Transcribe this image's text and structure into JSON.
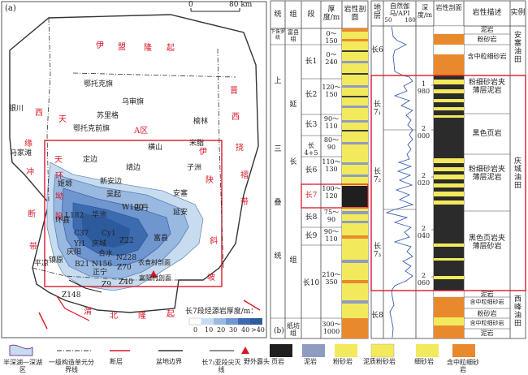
{
  "map": {
    "panel_label": "(a)",
    "scale": {
      "zero": "0",
      "dist": "80 km"
    },
    "region_labels": {
      "yimeng": [
        "伊",
        "盟",
        "隆",
        "起"
      ],
      "west": [
        "西",
        "天",
        "缘"
      ],
      "jinxi": [
        "晋",
        "西",
        "挠",
        "褶",
        "带"
      ],
      "weibei": [
        "渭",
        "北",
        "隆",
        "起"
      ],
      "yishan": [
        "伊",
        "陕",
        "斜",
        "坡"
      ],
      "tianhuan": [
        "天",
        "环",
        "坳",
        "陷"
      ],
      "chongduan": [
        "冲",
        "断",
        "带"
      ]
    },
    "places": [
      "银川",
      "鄂托克旗",
      "乌审旗",
      "苏里格",
      "鄂托克前旗",
      "榆林",
      "横山",
      "米脂",
      "子洲",
      "定边",
      "靖边",
      "马家滩",
      "姬塬",
      "新安边",
      "吴起",
      "安塞",
      "延安",
      "志丹",
      "环县",
      "华池",
      "Cy1",
      "Z22",
      "富县",
      "C37",
      "Yi1",
      "庆城",
      "N228",
      "Z70",
      "合水",
      "Z40",
      "衣食村剖面",
      "正宁",
      "N156",
      "B21",
      "平凉",
      "镇原",
      "庆阳",
      "Z148",
      "Z9",
      "W100",
      "L182",
      "富阳村剖面"
    ],
    "aarea": "A区",
    "colorbar_title": "长7段烃源岩厚度/m：",
    "colorbar_ticks": [
      "0",
      "10",
      "20",
      "30",
      "40",
      ">40"
    ]
  },
  "panel_b": {
    "label": "(b)",
    "headers": [
      "统",
      "组",
      "段",
      "厚度/m",
      "岩性剖面"
    ],
    "series": [
      "下侏罗统",
      "上",
      "三",
      "叠",
      "统"
    ],
    "formations": [
      "富县组",
      "延",
      "长",
      "组",
      "纸坊组"
    ],
    "members": [
      "长1",
      "长2",
      "长3",
      "长4+5",
      "长6",
      "长7",
      "长8",
      "长9",
      "长10"
    ],
    "thickness": [
      "0～150",
      "0～240",
      "120～150",
      "90～110",
      "80～90",
      "110～130",
      "100～120",
      "75～90",
      "90～110",
      "210～350",
      "300～1000"
    ]
  },
  "panel_c": {
    "headers": [
      "地层",
      "自然伽马/API",
      "深度/m",
      "岩性剖面",
      "岩性描述",
      "实例"
    ],
    "gr_ticks": [
      "50",
      "180"
    ],
    "strata": [
      "长6",
      "长7₁",
      "长7₂",
      "长7₃",
      "长8"
    ],
    "depth_ticks": [
      "1 980",
      "2 000",
      "2 020",
      "2 040",
      "2 060"
    ],
    "desc": [
      "泥岩",
      "粉砂岩",
      "含中粒细砂岩",
      "粉细砂岩夹薄层泥岩",
      "黑色页岩",
      "粉细砂岩夹薄层泥岩",
      "黑色页岩夹薄层砂岩",
      "泥岩",
      "含中粒细砂岩",
      "粉砂岩",
      "含中粒细砂岩",
      "泥岩"
    ],
    "examples": [
      "安塞油田",
      "庆城油田",
      "西峰油田"
    ]
  },
  "legend": [
    "半深湖—深湖区",
    "一级构造单元分界线",
    "断层",
    "盆地边界",
    "长7₃亚段尖灭线",
    "野外露头",
    "页岩",
    "泥岩",
    "粉砂岩",
    "泥质粉砂岩",
    "细砂岩",
    "含中粒细砂岩"
  ],
  "colors": {
    "red": "#d8192a",
    "deep_blue": "#2d5a9c",
    "light_blue": "#c8dcf0",
    "sand": "#f2ea5c",
    "orange": "#e9892d",
    "gr_line": "#3a5fb0"
  }
}
